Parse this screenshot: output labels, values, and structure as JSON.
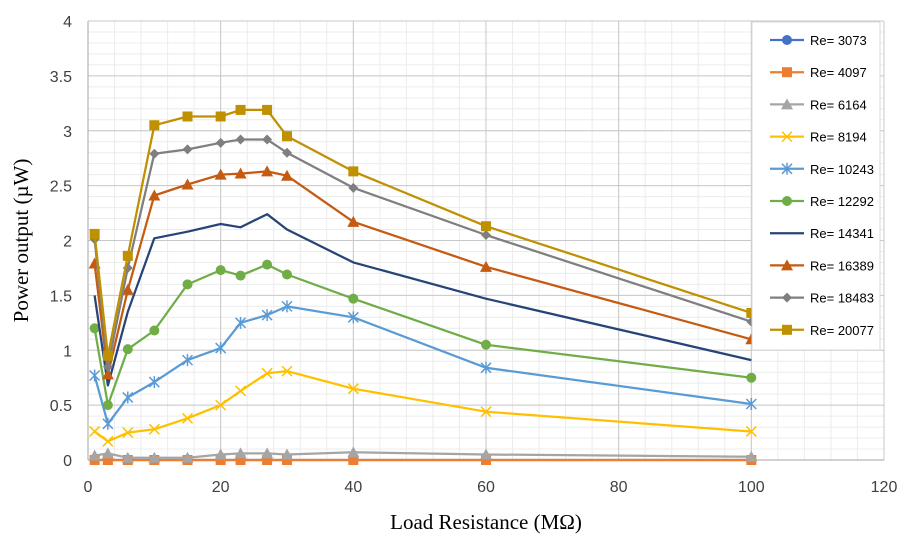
{
  "chart_data": {
    "type": "line",
    "title": "",
    "xlabel": "Load Resistance  (MΩ)",
    "ylabel": "Power output (µW)",
    "xlim": [
      0,
      120
    ],
    "ylim": [
      0,
      4
    ],
    "x_ticks": [
      "0",
      "20",
      "40",
      "60",
      "80",
      "100",
      "120"
    ],
    "y_ticks": [
      "0",
      "0.5",
      "1",
      "1.5",
      "2",
      "2.5",
      "3",
      "3.5",
      "4"
    ],
    "grid": true,
    "legend_position": "right",
    "x": [
      1,
      3,
      6,
      10,
      15,
      20,
      23,
      27,
      30,
      40,
      60,
      100
    ],
    "series": [
      {
        "name": "Re= 3073",
        "color": "#4472C4",
        "marker": "circle",
        "values": [
          0,
          0,
          0,
          0,
          0,
          0,
          0,
          0,
          0,
          0,
          0,
          0
        ]
      },
      {
        "name": "Re= 4097",
        "color": "#ED7D31",
        "marker": "square",
        "values": [
          0,
          0,
          0,
          0,
          0,
          0,
          0,
          0,
          0,
          0,
          0,
          0
        ]
      },
      {
        "name": "Re= 6164",
        "color": "#A5A5A5",
        "marker": "triangle",
        "values": [
          0.04,
          0.06,
          0.02,
          0.02,
          0.02,
          0.05,
          0.06,
          0.06,
          0.05,
          0.07,
          0.05,
          0.03
        ]
      },
      {
        "name": "Re= 8194",
        "color": "#FFC000",
        "marker": "x",
        "values": [
          0.26,
          0.17,
          0.25,
          0.28,
          0.38,
          0.5,
          0.63,
          0.79,
          0.81,
          0.65,
          0.44,
          0.26
        ]
      },
      {
        "name": "Re= 10243",
        "color": "#5B9BD5",
        "marker": "star",
        "values": [
          0.77,
          0.33,
          0.57,
          0.71,
          0.91,
          1.02,
          1.25,
          1.32,
          1.4,
          1.3,
          0.84,
          0.51
        ]
      },
      {
        "name": "Re= 12292",
        "color": "#70AD47",
        "marker": "circle",
        "values": [
          1.2,
          0.5,
          1.01,
          1.18,
          1.6,
          1.73,
          1.68,
          1.78,
          1.69,
          1.47,
          1.05,
          0.75
        ]
      },
      {
        "name": "Re= 14341",
        "color": "#264478",
        "marker": "none",
        "values": [
          1.5,
          0.68,
          1.35,
          2.02,
          2.08,
          2.15,
          2.12,
          2.24,
          2.1,
          1.8,
          1.47,
          0.91
        ]
      },
      {
        "name": "Re= 16389",
        "color": "#C55A11",
        "marker": "triangle",
        "values": [
          1.79,
          0.78,
          1.55,
          2.41,
          2.51,
          2.6,
          2.61,
          2.63,
          2.59,
          2.17,
          1.76,
          1.1
        ]
      },
      {
        "name": "Re= 18483",
        "color": "#7F7F7F",
        "marker": "diamond",
        "values": [
          2.01,
          0.85,
          1.75,
          2.79,
          2.83,
          2.89,
          2.92,
          2.92,
          2.8,
          2.48,
          2.05,
          1.26
        ]
      },
      {
        "name": "Re= 20077",
        "color": "#BF9000",
        "marker": "square",
        "values": [
          2.06,
          0.95,
          1.86,
          3.05,
          3.13,
          3.13,
          3.19,
          3.19,
          2.95,
          2.63,
          2.13,
          1.34
        ]
      }
    ]
  }
}
